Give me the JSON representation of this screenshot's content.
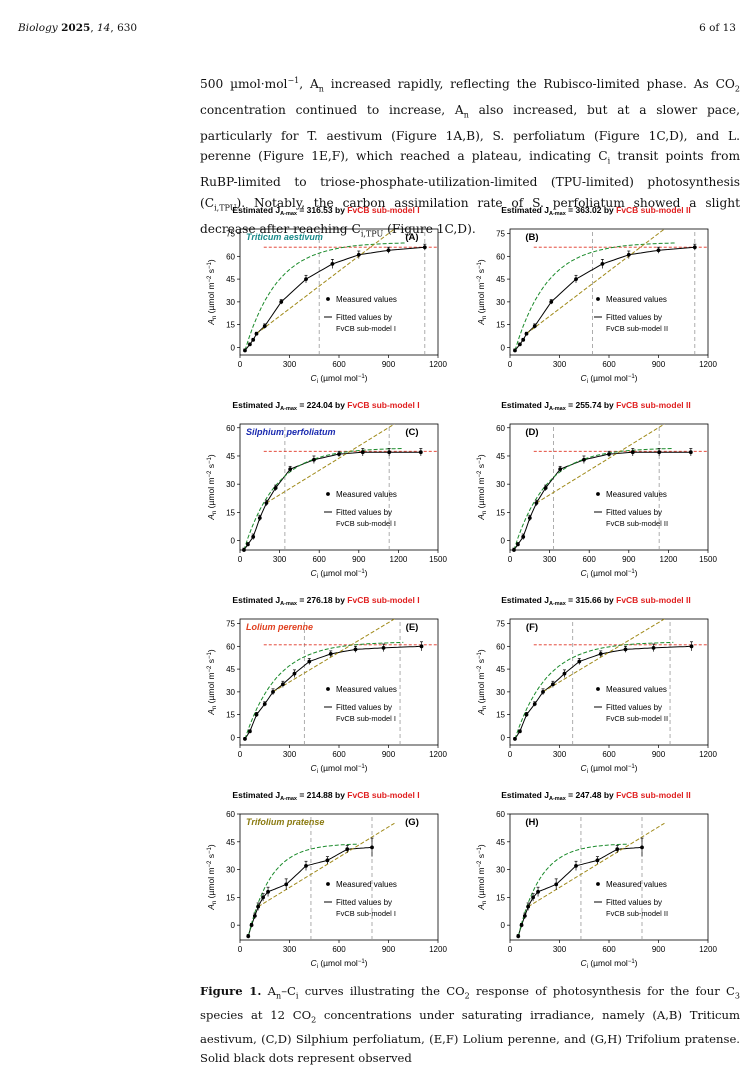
{
  "header": {
    "journal": "Biology",
    "year": "2025",
    "volume": "14",
    "article": "630",
    "page": "6 of 13"
  },
  "paragraph": [
    "500 µmol·mol",
    "−1",
    ", A",
    "n",
    " increased rapidly, reflecting the Rubisco-limited phase. As CO",
    "2",
    " concentration continued to increase, A",
    "n",
    " also increased, but at a slower pace, particularly for T. aestivum (Figure 1A,B), S. perfoliatum (Figure 1C,D), and L. perenne (Figure 1E,F), which reached a plateau, indicating C",
    "i",
    " transit points from RuBP-limited to triose-phosphate-utilization-limited (TPU-limited) photosynthesis (C",
    "i,TPU",
    "). Notably, the carbon assimilation rate of S. perfoliatum showed a slight decrease after reaching C",
    "i,TPU",
    " (Figure 1C,D)."
  ],
  "caption": {
    "label": "Figure 1.",
    "text_a": " A",
    "sub_n": "n",
    "text_b": "–C",
    "sub_i": "i",
    "text_c": " curves illustrating the CO",
    "sub_2": "2",
    "text_d": " response of photosynthesis for the four C",
    "sub_3": "3",
    "text_e": " species at 12 CO",
    "sub_2b": "2",
    "text_f": " concentrations under saturating irradiance, namely (A,B) Triticum aestivum, (C,D) Silphium perfoliatum, (E,F) Lolium perenne, and (G,H) Trifolium pratense. Solid black dots represent observed"
  },
  "common": {
    "ylabel_A": "A",
    "ylabel_sub": "n",
    "ylabel_units": " (µmol m",
    "ylabel_exp1": "−2",
    "ylabel_s": " s",
    "ylabel_exp2": "−1",
    "ylabel_close": ")",
    "xlabel": "C",
    "xlabel_sub": "i",
    "xlabel_units": " (µmol mol",
    "xlabel_exp": "−1",
    "xlabel_close": ")",
    "legend_measured": "Measured values",
    "legend_fitted1": "Fitted values by",
    "estimated_prefix": "Estimated J",
    "estimated_sub": "A-max",
    "estimated_by": " by ",
    "colors": {
      "fit": "#000000",
      "rubisco": "#1a8a2a",
      "rubp": "#a08a1a",
      "tpu": "#e03020",
      "vline": "#999999",
      "model": "#e02020"
    }
  },
  "chart_data": [
    {
      "panel": "A",
      "species": "Triticum aestivum",
      "species_color": "#1a8a8a",
      "jmax": "= 316.53",
      "model": "FvCB sub-model I",
      "model_legend": "FvCB sub-model I",
      "type": "scatter",
      "xlim": [
        0,
        1200
      ],
      "ylim": [
        -5,
        78
      ],
      "xticks": [
        "0",
        "300",
        "600",
        "900",
        "1200"
      ],
      "yticks": [
        "0",
        "15",
        "30",
        "45",
        "60",
        "75"
      ],
      "x": [
        30,
        60,
        80,
        100,
        150,
        250,
        400,
        560,
        720,
        900,
        1120
      ],
      "y": [
        -2,
        2,
        5,
        9,
        14,
        30,
        45,
        55,
        61,
        64,
        66
      ],
      "err": [
        1,
        1,
        1,
        1,
        1.5,
        1.5,
        2.5,
        3,
        2.5,
        2,
        2
      ],
      "tpu_y": 66,
      "v1": 480,
      "v2": 1120,
      "rub_max": 78
    },
    {
      "panel": "B",
      "species": "",
      "species_color": "#000000",
      "jmax": "= 363.02",
      "model": "FvCB sub-model II",
      "model_legend": "FvCB sub-model II",
      "type": "scatter",
      "xlim": [
        0,
        1200
      ],
      "ylim": [
        -5,
        78
      ],
      "xticks": [
        "0",
        "300",
        "600",
        "900",
        "1200"
      ],
      "yticks": [
        "0",
        "15",
        "30",
        "45",
        "60",
        "75"
      ],
      "x": [
        30,
        60,
        80,
        100,
        150,
        250,
        400,
        560,
        720,
        900,
        1120
      ],
      "y": [
        -2,
        2,
        5,
        9,
        14,
        30,
        45,
        55,
        61,
        64,
        66
      ],
      "err": [
        1,
        1,
        1,
        1,
        1.5,
        1.5,
        2.5,
        3,
        2.5,
        2,
        2
      ],
      "tpu_y": 66,
      "v1": 500,
      "v2": 1120,
      "rub_max": 78
    },
    {
      "panel": "C",
      "species": "Silphium perfoliatum",
      "species_color": "#1a2ab0",
      "jmax": "= 224.04",
      "model": "FvCB sub-model I",
      "model_legend": "FvCB sub-model I",
      "type": "scatter",
      "xlim": [
        0,
        1500
      ],
      "ylim": [
        -5,
        62
      ],
      "xticks": [
        "0",
        "300",
        "600",
        "900",
        "1200",
        "1500"
      ],
      "yticks": [
        "0",
        "15",
        "30",
        "45",
        "60"
      ],
      "x": [
        30,
        60,
        100,
        150,
        200,
        270,
        380,
        560,
        750,
        930,
        1130,
        1370
      ],
      "y": [
        -5,
        -2,
        2,
        12,
        20,
        28,
        38,
        43,
        46,
        47,
        47,
        47
      ],
      "err": [
        1,
        1,
        1.5,
        1.5,
        1.5,
        1.5,
        1.5,
        2,
        1.5,
        2,
        2,
        2
      ],
      "tpu_y": 47.5,
      "v1": 340,
      "v2": 1130,
      "rub_max": 62
    },
    {
      "panel": "D",
      "species": "",
      "species_color": "#000000",
      "jmax": "= 255.74",
      "model": "FvCB sub-model II",
      "model_legend": "FvCB sub-model II",
      "type": "scatter",
      "xlim": [
        0,
        1500
      ],
      "ylim": [
        -5,
        62
      ],
      "xticks": [
        "0",
        "300",
        "600",
        "900",
        "1200",
        "1500"
      ],
      "yticks": [
        "0",
        "15",
        "30",
        "45",
        "60"
      ],
      "x": [
        30,
        60,
        100,
        150,
        200,
        270,
        380,
        560,
        750,
        930,
        1130,
        1370
      ],
      "y": [
        -5,
        -2,
        2,
        12,
        20,
        28,
        38,
        43,
        46,
        47,
        47,
        47
      ],
      "err": [
        1,
        1,
        1.5,
        1.5,
        1.5,
        1.5,
        1.5,
        2,
        1.5,
        2,
        2,
        2
      ],
      "tpu_y": 47.5,
      "v1": 330,
      "v2": 1130,
      "rub_max": 62
    },
    {
      "panel": "E",
      "species": "Lolium perenne",
      "species_color": "#e04020",
      "jmax": "= 276.18",
      "model": "FvCB sub-model I",
      "model_legend": "FvCB sub-model I",
      "type": "scatter",
      "xlim": [
        0,
        1200
      ],
      "ylim": [
        -5,
        78
      ],
      "xticks": [
        "0",
        "300",
        "600",
        "900",
        "1200"
      ],
      "yticks": [
        "0",
        "15",
        "30",
        "45",
        "60",
        "75"
      ],
      "x": [
        30,
        60,
        100,
        150,
        200,
        260,
        330,
        420,
        550,
        700,
        870,
        1100
      ],
      "y": [
        -1,
        4,
        15,
        22,
        30,
        35,
        42,
        50,
        55,
        58,
        59,
        60
      ],
      "err": [
        1,
        1,
        1.5,
        1.5,
        2,
        2,
        2.5,
        2,
        2,
        2,
        2.5,
        3
      ],
      "tpu_y": 61,
      "v1": 390,
      "v2": 970,
      "rub_max": 78
    },
    {
      "panel": "F",
      "species": "",
      "species_color": "#000000",
      "jmax": "= 315.66",
      "model": "FvCB sub-model II",
      "model_legend": "FvCB sub-model II",
      "type": "scatter",
      "xlim": [
        0,
        1200
      ],
      "ylim": [
        -5,
        78
      ],
      "xticks": [
        "0",
        "300",
        "600",
        "900",
        "1200"
      ],
      "yticks": [
        "0",
        "15",
        "30",
        "45",
        "60",
        "75"
      ],
      "x": [
        30,
        60,
        100,
        150,
        200,
        260,
        330,
        420,
        550,
        700,
        870,
        1100
      ],
      "y": [
        -1,
        4,
        15,
        22,
        30,
        35,
        42,
        50,
        55,
        58,
        59,
        60
      ],
      "err": [
        1,
        1,
        1.5,
        1.5,
        2,
        2,
        2.5,
        2,
        2,
        2,
        2.5,
        3
      ],
      "tpu_y": 61,
      "v1": 380,
      "v2": 970,
      "rub_max": 78
    },
    {
      "panel": "G",
      "species": "Trifolium pratense",
      "species_color": "#8a7a10",
      "jmax": "= 214.88",
      "model": "FvCB sub-model I",
      "model_legend": "FvCB sub-model I",
      "type": "scatter",
      "xlim": [
        0,
        1200
      ],
      "ylim": [
        -8,
        60
      ],
      "xticks": [
        "0",
        "300",
        "600",
        "900",
        "1200"
      ],
      "yticks": [
        "0",
        "15",
        "30",
        "45",
        "60"
      ],
      "x": [
        50,
        70,
        90,
        110,
        140,
        170,
        280,
        400,
        530,
        650,
        800
      ],
      "y": [
        -6,
        0,
        5,
        10,
        15,
        18,
        22,
        32,
        35,
        41,
        42
      ],
      "err": [
        1,
        1,
        1.5,
        2,
        2,
        2.5,
        3,
        2.5,
        2,
        2,
        5
      ],
      "tpu_y": 0,
      "v1": 430,
      "v2": 800,
      "rub_max": 55
    },
    {
      "panel": "H",
      "species": "",
      "species_color": "#000000",
      "jmax": "= 247.48",
      "model": "FvCB sub-model II",
      "model_legend": "FvCB sub-model II",
      "type": "scatter",
      "xlim": [
        0,
        1200
      ],
      "ylim": [
        -8,
        60
      ],
      "xticks": [
        "0",
        "300",
        "600",
        "900",
        "1200"
      ],
      "yticks": [
        "0",
        "15",
        "30",
        "45",
        "60"
      ],
      "x": [
        50,
        70,
        90,
        110,
        140,
        170,
        280,
        400,
        530,
        650,
        800
      ],
      "y": [
        -6,
        0,
        5,
        10,
        15,
        18,
        22,
        32,
        35,
        41,
        42
      ],
      "err": [
        1,
        1,
        1.5,
        2,
        2,
        2.5,
        3,
        2.5,
        2,
        2,
        5
      ],
      "tpu_y": 0,
      "v1": 430,
      "v2": 800,
      "rub_max": 55
    }
  ]
}
